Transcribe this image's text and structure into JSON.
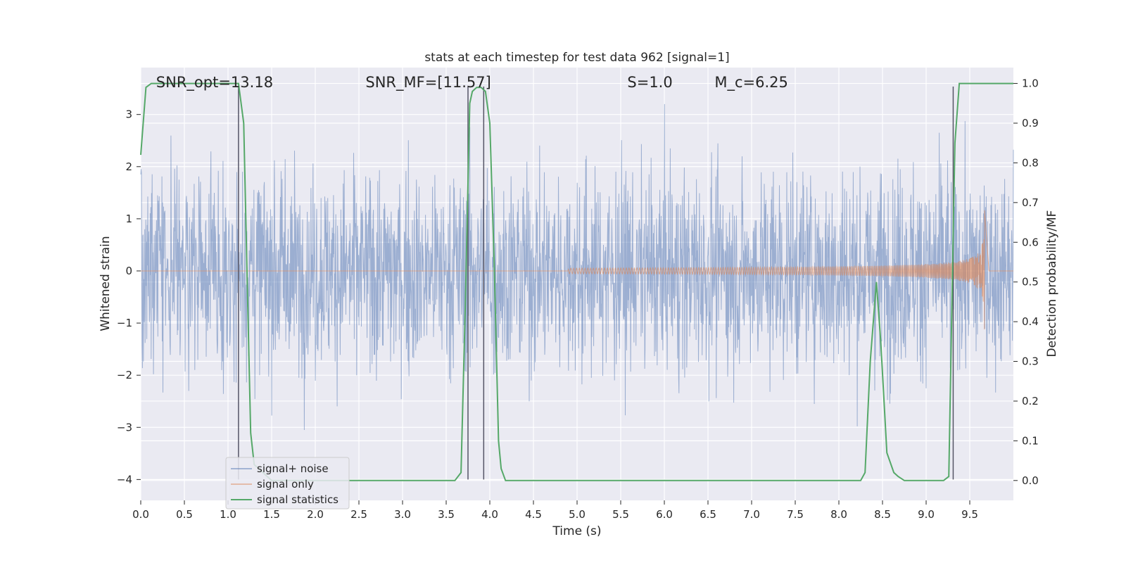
{
  "chart_data": {
    "type": "line",
    "title": "stats at each timestep for test data 962 [signal=1]",
    "xlabel": "Time (s)",
    "ylabel": "Whitened strain",
    "y2label": "Detection probability/MF",
    "xlim": [
      0.0,
      10.0
    ],
    "ylim": [
      -4.4,
      3.9
    ],
    "y2lim": [
      -0.05,
      1.04
    ],
    "x_ticks": [
      0.0,
      0.5,
      1.0,
      1.5,
      2.0,
      2.5,
      3.0,
      3.5,
      4.0,
      4.5,
      5.0,
      5.5,
      6.0,
      6.5,
      7.0,
      7.5,
      8.0,
      8.5,
      9.0,
      9.5
    ],
    "x_tick_labels": [
      "0.0",
      "0.5",
      "1.0",
      "1.5",
      "2.0",
      "2.5",
      "3.0",
      "3.5",
      "4.0",
      "4.5",
      "5.0",
      "5.5",
      "6.0",
      "6.5",
      "7.0",
      "7.5",
      "8.0",
      "8.5",
      "9.0",
      "9.5"
    ],
    "y_ticks": [
      -4,
      -3,
      -2,
      -1,
      0,
      1,
      2,
      3
    ],
    "y_tick_labels": [
      "−4",
      "−3",
      "−2",
      "−1",
      "0",
      "1",
      "2",
      "3"
    ],
    "y2_ticks": [
      0.0,
      0.1,
      0.2,
      0.3,
      0.4,
      0.5,
      0.6,
      0.7,
      0.8,
      0.9,
      1.0
    ],
    "y2_tick_labels": [
      "0.0",
      "0.1",
      "0.2",
      "0.3",
      "0.4",
      "0.5",
      "0.6",
      "0.7",
      "0.8",
      "0.9",
      "1.0"
    ],
    "annotations": [
      {
        "text": "SNR_opt=13.18",
        "x": 0.2
      },
      {
        "text": "SNR_MF=[11.57]",
        "x": 2.6
      },
      {
        "text": "S=1.0",
        "x": 5.6
      },
      {
        "text": "M_c=6.25",
        "x": 6.6
      }
    ],
    "vertical_lines_x": [
      1.12,
      3.75,
      3.93,
      9.31
    ],
    "grid": true,
    "legend": {
      "position": "lower-left",
      "entries": [
        {
          "label": "signal+ noise",
          "color": "#4c72b0"
        },
        {
          "label": "signal only",
          "color": "#dd8452"
        },
        {
          "label": "signal statistics",
          "color": "#55a868"
        }
      ]
    },
    "series": [
      {
        "name": "signal+ noise",
        "axis": "left",
        "color": "#4c72b0",
        "description_values": {
          "approx_range": [
            -3.8,
            3.2
          ],
          "typical_envelope": [
            -2.0,
            2.0
          ]
        }
      },
      {
        "name": "signal only",
        "axis": "left",
        "color": "#dd8452",
        "chirp": {
          "start_x": 4.9,
          "merger_x": 9.67,
          "end_x": 9.72,
          "peak_amplitude": 1.25
        }
      },
      {
        "name": "signal statistics",
        "axis": "right",
        "color": "#55a868",
        "x": [
          0.0,
          0.06,
          0.12,
          0.2,
          0.5,
          1.0,
          1.12,
          1.18,
          1.22,
          1.26,
          1.3,
          1.5,
          2.0,
          3.0,
          3.5,
          3.6,
          3.67,
          3.72,
          3.77,
          3.8,
          3.85,
          3.9,
          3.95,
          4.0,
          4.05,
          4.1,
          4.13,
          4.18,
          4.3,
          5.0,
          6.0,
          7.0,
          8.0,
          8.25,
          8.3,
          8.36,
          8.43,
          8.48,
          8.55,
          8.63,
          8.68,
          8.75,
          9.0,
          9.2,
          9.26,
          9.3,
          9.33,
          9.38,
          9.5,
          10.0
        ],
        "values": [
          0.82,
          0.99,
          1.0,
          1.0,
          1.0,
          1.0,
          1.0,
          0.9,
          0.5,
          0.12,
          0.04,
          0.0,
          0.0,
          0.0,
          0.0,
          0.0,
          0.02,
          0.45,
          0.95,
          0.98,
          0.99,
          0.99,
          0.98,
          0.9,
          0.55,
          0.1,
          0.03,
          0.0,
          0.0,
          0.0,
          0.0,
          0.0,
          0.0,
          0.0,
          0.02,
          0.3,
          0.5,
          0.35,
          0.07,
          0.02,
          0.01,
          0.0,
          0.0,
          0.0,
          0.01,
          0.5,
          0.85,
          1.0,
          1.0,
          1.0
        ]
      }
    ]
  },
  "colors": {
    "plot_background": "#eaeaf2",
    "grid": "#ffffff",
    "noise": "#4c72b0",
    "signal": "#dd8452",
    "stats": "#55a868",
    "vertical_line": "#555566"
  }
}
